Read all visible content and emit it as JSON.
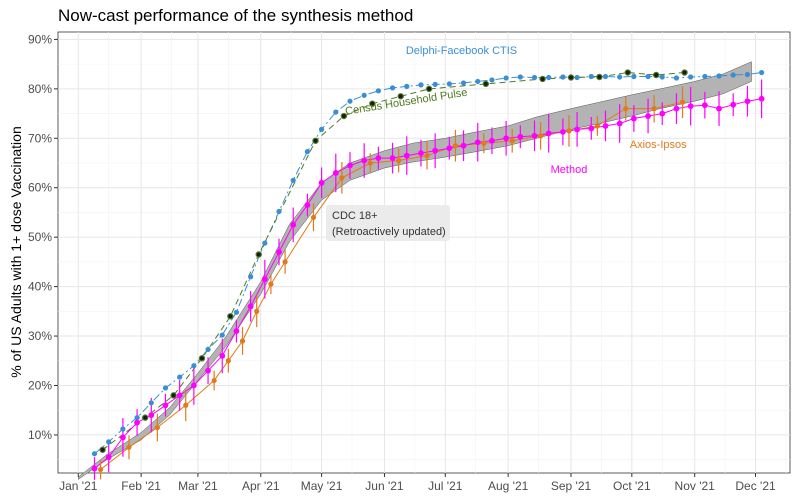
{
  "chart_data": {
    "type": "line",
    "title": "Now-cast performance of the synthesis method",
    "ylabel": "% of US Adults with 1+ dose Vaccination",
    "xlabel": "",
    "x_ticks": [
      "Jan '21",
      "Feb '21",
      "Mar '21",
      "Apr '21",
      "May '21",
      "Jun '21",
      "Jul '21",
      "Aug '21",
      "Sep '21",
      "Oct '21",
      "Nov '21",
      "Dec '21"
    ],
    "y_ticks": [
      "10%",
      "20%",
      "30%",
      "40%",
      "50%",
      "60%",
      "70%",
      "80%",
      "90%"
    ],
    "xlim": [
      "2020-12-22",
      "2021-12-18"
    ],
    "ylim": [
      2.3,
      91.5
    ],
    "grid": true,
    "legend": "none (direct labels)",
    "series": [
      {
        "name": "Delphi-Facebook CTIS",
        "color": "#3a8fd4",
        "style": "dashdot line with points",
        "points": [
          [
            "2021-01-09",
            6.2
          ],
          [
            "2021-01-16",
            8.6
          ],
          [
            "2021-01-23",
            11.2
          ],
          [
            "2021-01-30",
            13.5
          ],
          [
            "2021-02-06",
            16.5
          ],
          [
            "2021-02-13",
            19.5
          ],
          [
            "2021-02-20",
            21.7
          ],
          [
            "2021-02-27",
            24.0
          ],
          [
            "2021-03-06",
            27.3
          ],
          [
            "2021-03-13",
            30.2
          ],
          [
            "2021-03-20",
            34.8
          ],
          [
            "2021-03-27",
            42.0
          ],
          [
            "2021-04-03",
            48.8
          ],
          [
            "2021-04-10",
            55.2
          ],
          [
            "2021-04-17",
            61.5
          ],
          [
            "2021-04-24",
            67.3
          ],
          [
            "2021-05-01",
            71.8
          ],
          [
            "2021-05-08",
            75.3
          ],
          [
            "2021-05-15",
            77.5
          ],
          [
            "2021-05-22",
            78.7
          ],
          [
            "2021-05-29",
            79.6
          ],
          [
            "2021-06-05",
            80.2
          ],
          [
            "2021-06-12",
            80.5
          ],
          [
            "2021-06-19",
            80.8
          ],
          [
            "2021-06-26",
            80.9
          ],
          [
            "2021-07-03",
            81.0
          ],
          [
            "2021-07-10",
            81.2
          ],
          [
            "2021-07-17",
            81.5
          ],
          [
            "2021-07-24",
            81.8
          ],
          [
            "2021-07-31",
            82.2
          ],
          [
            "2021-08-07",
            82.4
          ],
          [
            "2021-08-14",
            82.3
          ],
          [
            "2021-08-21",
            82.3
          ],
          [
            "2021-08-28",
            82.4
          ],
          [
            "2021-09-04",
            82.3
          ],
          [
            "2021-09-11",
            82.5
          ],
          [
            "2021-09-18",
            82.5
          ],
          [
            "2021-09-25",
            82.4
          ],
          [
            "2021-10-02",
            82.5
          ],
          [
            "2021-10-09",
            82.5
          ],
          [
            "2021-10-16",
            82.4
          ],
          [
            "2021-10-23",
            82.2
          ],
          [
            "2021-10-30",
            82.4
          ],
          [
            "2021-11-06",
            82.5
          ],
          [
            "2021-11-13",
            82.6
          ],
          [
            "2021-11-20",
            82.8
          ],
          [
            "2021-11-27",
            82.9
          ],
          [
            "2021-12-04",
            83.3
          ]
        ]
      },
      {
        "name": "Census Household Pulse",
        "color": "#4f7a21",
        "style": "dashed line with points",
        "points": [
          [
            "2021-01-13",
            7.0
          ],
          [
            "2021-02-03",
            13.5
          ],
          [
            "2021-02-17",
            18.0
          ],
          [
            "2021-03-03",
            25.5
          ],
          [
            "2021-03-17",
            34.0
          ],
          [
            "2021-03-31",
            46.5
          ],
          [
            "2021-04-28",
            69.5
          ],
          [
            "2021-05-12",
            74.5
          ],
          [
            "2021-05-26",
            77.0
          ],
          [
            "2021-06-09",
            78.5
          ],
          [
            "2021-06-23",
            80.0
          ],
          [
            "2021-07-21",
            81.0
          ],
          [
            "2021-08-18",
            82.0
          ],
          [
            "2021-09-01",
            82.3
          ],
          [
            "2021-09-15",
            82.4
          ],
          [
            "2021-09-29",
            83.3
          ],
          [
            "2021-10-13",
            82.8
          ],
          [
            "2021-10-27",
            83.3
          ]
        ]
      },
      {
        "name": "CDC 18+ (Retroactively updated)",
        "color": "#a9a9a9",
        "style": "grey band between lower and upper",
        "points": [
          [
            "2021-01-01",
            1.0,
            1.5
          ],
          [
            "2021-01-15",
            5.0,
            6.0
          ],
          [
            "2021-02-01",
            9.0,
            10.5
          ],
          [
            "2021-02-15",
            14.0,
            15.5
          ],
          [
            "2021-03-01",
            21.0,
            22.5
          ],
          [
            "2021-03-15",
            28.0,
            30.0
          ],
          [
            "2021-04-01",
            38.5,
            41.0
          ],
          [
            "2021-04-15",
            49.0,
            52.5
          ],
          [
            "2021-05-01",
            57.5,
            61.0
          ],
          [
            "2021-05-15",
            61.5,
            65.0
          ],
          [
            "2021-06-01",
            64.0,
            67.5
          ],
          [
            "2021-06-15",
            65.2,
            69.0
          ],
          [
            "2021-07-01",
            66.2,
            70.0
          ],
          [
            "2021-07-15",
            67.2,
            71.2
          ],
          [
            "2021-08-01",
            68.5,
            72.5
          ],
          [
            "2021-08-15",
            70.0,
            74.3
          ],
          [
            "2021-09-01",
            71.8,
            76.0
          ],
          [
            "2021-09-15",
            73.0,
            77.3
          ],
          [
            "2021-10-01",
            74.5,
            78.8
          ],
          [
            "2021-10-15",
            76.0,
            80.0
          ],
          [
            "2021-11-01",
            77.5,
            81.5
          ],
          [
            "2021-11-15",
            79.0,
            83.0
          ],
          [
            "2021-11-29",
            81.5,
            85.5
          ]
        ]
      },
      {
        "name": "Axios-Ipsos",
        "color": "#e07a1c",
        "style": "line with points and error bars",
        "points": [
          [
            "2021-01-12",
            3.0
          ],
          [
            "2021-01-26",
            7.5
          ],
          [
            "2021-02-09",
            11.5
          ],
          [
            "2021-02-23",
            16.0
          ],
          [
            "2021-03-09",
            21.0
          ],
          [
            "2021-03-16",
            25.0
          ],
          [
            "2021-03-23",
            29.0
          ],
          [
            "2021-03-30",
            35.0
          ],
          [
            "2021-04-06",
            40.5
          ],
          [
            "2021-04-13",
            45.0
          ],
          [
            "2021-04-27",
            54.0
          ],
          [
            "2021-05-11",
            62.0
          ],
          [
            "2021-05-25",
            65.0
          ],
          [
            "2021-06-08",
            65.5
          ],
          [
            "2021-06-22",
            66.5
          ],
          [
            "2021-07-06",
            68.5
          ],
          [
            "2021-07-20",
            69.0
          ],
          [
            "2021-08-03",
            69.5
          ],
          [
            "2021-08-17",
            70.5
          ],
          [
            "2021-08-31",
            71.5
          ],
          [
            "2021-09-14",
            72.5
          ],
          [
            "2021-09-28",
            76.0
          ],
          [
            "2021-10-12",
            76.0
          ],
          [
            "2021-10-26",
            77.3
          ]
        ]
      },
      {
        "name": "Method",
        "color": "#ff00ff",
        "style": "line with points and error bars",
        "points": [
          [
            "2021-01-09",
            3.2
          ],
          [
            "2021-01-16",
            5.5
          ],
          [
            "2021-01-23",
            9.5
          ],
          [
            "2021-01-30",
            12.5
          ],
          [
            "2021-02-06",
            14.0
          ],
          [
            "2021-02-13",
            16.0
          ],
          [
            "2021-02-20",
            18.0
          ],
          [
            "2021-02-27",
            20.0
          ],
          [
            "2021-03-06",
            23.0
          ],
          [
            "2021-03-13",
            26.0
          ],
          [
            "2021-03-20",
            31.0
          ],
          [
            "2021-03-27",
            36.0
          ],
          [
            "2021-04-03",
            41.5
          ],
          [
            "2021-04-10",
            47.0
          ],
          [
            "2021-04-17",
            52.5
          ],
          [
            "2021-04-24",
            56.5
          ],
          [
            "2021-05-01",
            61.0
          ],
          [
            "2021-05-08",
            63.0
          ],
          [
            "2021-05-15",
            64.5
          ],
          [
            "2021-05-22",
            65.5
          ],
          [
            "2021-05-29",
            66.0
          ],
          [
            "2021-06-05",
            66.0
          ],
          [
            "2021-06-12",
            66.5
          ],
          [
            "2021-06-19",
            67.0
          ],
          [
            "2021-06-26",
            67.5
          ],
          [
            "2021-07-03",
            68.0
          ],
          [
            "2021-07-10",
            68.5
          ],
          [
            "2021-07-17",
            69.2
          ],
          [
            "2021-07-24",
            69.5
          ],
          [
            "2021-07-31",
            70.0
          ],
          [
            "2021-08-07",
            70.3
          ],
          [
            "2021-08-14",
            70.5
          ],
          [
            "2021-08-21",
            71.0
          ],
          [
            "2021-08-28",
            71.3
          ],
          [
            "2021-09-04",
            71.8
          ],
          [
            "2021-09-11",
            72.0
          ],
          [
            "2021-09-18",
            72.5
          ],
          [
            "2021-09-25",
            73.0
          ],
          [
            "2021-10-02",
            74.0
          ],
          [
            "2021-10-09",
            74.5
          ],
          [
            "2021-10-16",
            75.0
          ],
          [
            "2021-10-23",
            76.0
          ],
          [
            "2021-10-30",
            76.5
          ],
          [
            "2021-11-06",
            76.7
          ],
          [
            "2021-11-13",
            76.0
          ],
          [
            "2021-11-20",
            76.8
          ],
          [
            "2021-11-27",
            77.5
          ],
          [
            "2021-12-04",
            78.0
          ]
        ]
      }
    ],
    "annotations": [
      {
        "name": "delphi",
        "text": "Delphi-Facebook CTIS",
        "date": "2021-07-09",
        "y": 87.0,
        "rotate": 0,
        "color": "#3a8fd4"
      },
      {
        "name": "census",
        "text": "Census Household Pulse",
        "date": "2021-06-12",
        "y": 76.7,
        "rotate": -9,
        "color": "#4f7a21"
      },
      {
        "name": "axios",
        "text": "Axios-Ipsos",
        "date": "2021-10-14",
        "y": 68.0,
        "rotate": 0,
        "color": "#e07a1c"
      },
      {
        "name": "method",
        "text": "Method",
        "date": "2021-08-31",
        "y": 63.0,
        "rotate": 0,
        "color": "#ff00ff"
      }
    ],
    "cdc_label": {
      "line1": "CDC 18+",
      "line2": "(Retroactively updated)"
    }
  }
}
